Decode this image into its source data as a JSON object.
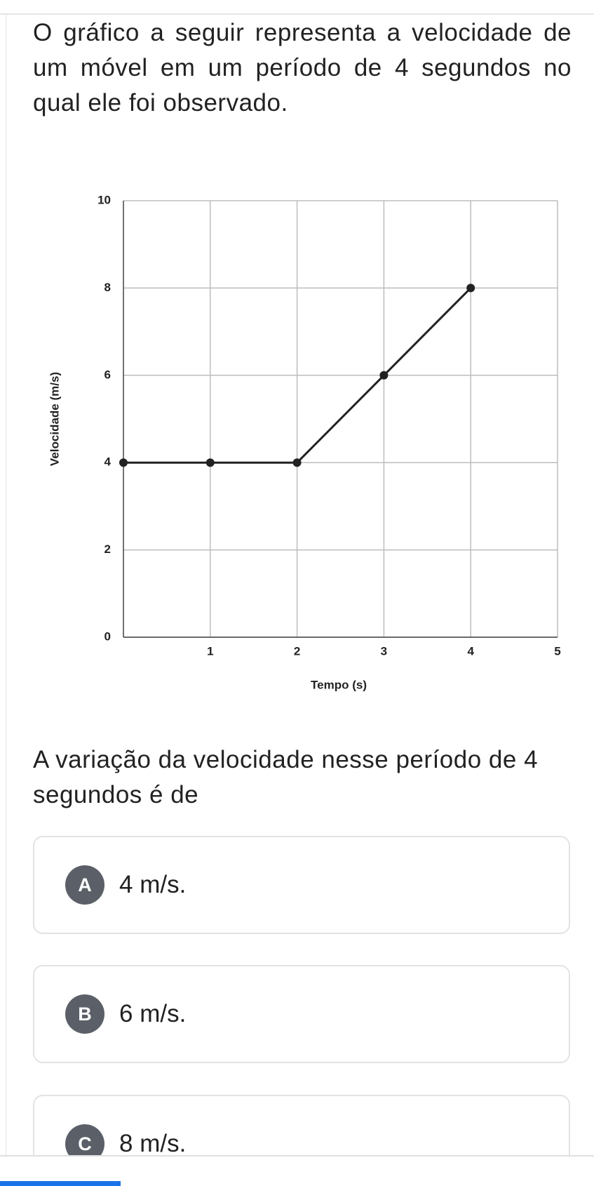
{
  "question": {
    "text": "O gráfico a seguir representa a velocidade de um móvel em um período de 4 segundos no qual ele foi observado."
  },
  "chart_data": {
    "type": "line",
    "x_label": "Tempo (s)",
    "y_label": "Velocidade (m/s)",
    "x": [
      0,
      1,
      2,
      3,
      4
    ],
    "values": [
      4,
      4,
      4,
      6,
      8
    ],
    "color": "#222222",
    "xlim": [
      0,
      5
    ],
    "xticks": [
      1,
      2,
      3,
      4,
      5
    ],
    "ylim": [
      0,
      10
    ],
    "yticks": [
      0,
      2,
      4,
      6,
      8,
      10
    ],
    "grid": true
  },
  "prompt": "A variação da velocidade nesse período de 4 segundos é de",
  "options": [
    {
      "letter": "A",
      "text": "4 m/s."
    },
    {
      "letter": "B",
      "text": "6 m/s."
    },
    {
      "letter": "C",
      "text": "8 m/s."
    }
  ]
}
